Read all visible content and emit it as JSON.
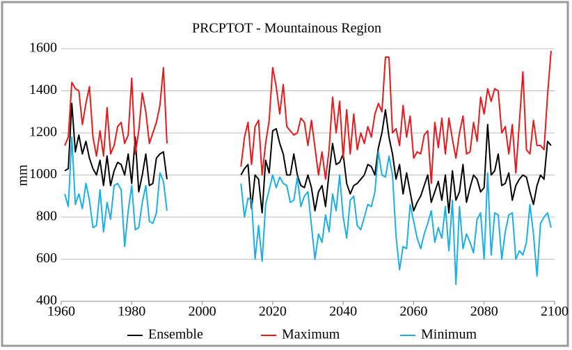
{
  "chart_data": {
    "type": "line",
    "title": "PRCPTOT - Mountainous Region",
    "y_label": "mm",
    "x": [
      1961,
      1962,
      1963,
      1964,
      1965,
      1966,
      1967,
      1968,
      1969,
      1970,
      1971,
      1972,
      1973,
      1974,
      1975,
      1976,
      1977,
      1978,
      1979,
      1980,
      1981,
      1982,
      1983,
      1984,
      1985,
      1986,
      1987,
      1988,
      1989,
      1990,
      2000,
      2011,
      2012,
      2013,
      2014,
      2015,
      2016,
      2017,
      2018,
      2019,
      2020,
      2021,
      2022,
      2023,
      2024,
      2025,
      2026,
      2027,
      2028,
      2029,
      2030,
      2031,
      2032,
      2033,
      2034,
      2035,
      2036,
      2037,
      2038,
      2039,
      2040,
      2041,
      2042,
      2043,
      2044,
      2045,
      2046,
      2047,
      2048,
      2049,
      2050,
      2051,
      2052,
      2053,
      2054,
      2055,
      2056,
      2057,
      2058,
      2059,
      2060,
      2061,
      2062,
      2063,
      2064,
      2065,
      2066,
      2067,
      2068,
      2069,
      2070,
      2071,
      2072,
      2073,
      2074,
      2075,
      2076,
      2077,
      2078,
      2079,
      2080,
      2081,
      2082,
      2083,
      2084,
      2085,
      2086,
      2087,
      2088,
      2089,
      2090,
      2091,
      2092,
      2093,
      2094,
      2095,
      2096,
      2097,
      2098,
      2099
    ],
    "series": [
      {
        "name": "Ensemble",
        "color": "#000000",
        "values": [
          1020,
          1030,
          1340,
          1110,
          1190,
          1100,
          1160,
          1080,
          1030,
          1000,
          1070,
          950,
          1090,
          950,
          1020,
          1060,
          1050,
          1000,
          1100,
          960,
          1180,
          920,
          1000,
          1100,
          950,
          960,
          1080,
          1100,
          1110,
          980,
          null,
          1000,
          1030,
          1050,
          840,
          1000,
          980,
          820,
          1070,
          1010,
          1210,
          1220,
          1150,
          1100,
          1000,
          1000,
          1100,
          1000,
          950,
          940,
          1000,
          940,
          830,
          920,
          950,
          850,
          1010,
          1150,
          1050,
          1060,
          1100,
          960,
          910,
          950,
          960,
          980,
          1000,
          1050,
          1040,
          1000,
          1130,
          1200,
          1310,
          1180,
          1100,
          980,
          1050,
          910,
          1010,
          920,
          830,
          870,
          900,
          950,
          1000,
          870,
          920,
          970,
          880,
          1000,
          820,
          1020,
          880,
          920,
          1050,
          870,
          940,
          1000,
          980,
          920,
          940,
          1240,
          1000,
          1020,
          1100,
          950,
          960,
          1010,
          880,
          950,
          980,
          1000,
          990,
          920,
          860,
          950,
          1000,
          980,
          1160,
          1140
        ]
      },
      {
        "name": "Maximum",
        "color": "#e8191c",
        "values": [
          1140,
          1180,
          1440,
          1410,
          1400,
          1240,
          1340,
          1420,
          1180,
          1090,
          1210,
          1090,
          1320,
          1100,
          1140,
          1230,
          1250,
          1150,
          1190,
          1460,
          1100,
          1210,
          1390,
          1300,
          1150,
          1200,
          1250,
          1330,
          1510,
          1150,
          null,
          1040,
          1180,
          1250,
          1050,
          1230,
          1260,
          1000,
          1150,
          1260,
          1510,
          1420,
          1290,
          1430,
          1230,
          1210,
          1190,
          1200,
          1270,
          1250,
          1140,
          1260,
          1130,
          1000,
          1110,
          980,
          1120,
          1370,
          1200,
          1350,
          1080,
          1310,
          1100,
          1290,
          1120,
          1200,
          1150,
          1230,
          1180,
          1290,
          1340,
          1300,
          1560,
          1560,
          1200,
          1220,
          1140,
          1330,
          1180,
          1280,
          1080,
          1110,
          1100,
          1190,
          1210,
          960,
          1250,
          1130,
          1270,
          1100,
          1270,
          1170,
          1080,
          1200,
          1280,
          1100,
          1110,
          1250,
          1160,
          1370,
          1290,
          1410,
          1350,
          1410,
          1400,
          1200,
          1230,
          1100,
          1240,
          1010,
          1250,
          1490,
          1120,
          1100,
          1260,
          1140,
          1140,
          1120,
          1380,
          1590
        ]
      },
      {
        "name": "Minimum",
        "color": "#1eaee6",
        "values": [
          910,
          850,
          1180,
          860,
          910,
          840,
          960,
          880,
          750,
          760,
          930,
          730,
          870,
          790,
          950,
          960,
          930,
          660,
          830,
          950,
          740,
          750,
          870,
          950,
          780,
          770,
          820,
          1010,
          970,
          830,
          null,
          960,
          800,
          890,
          880,
          600,
          760,
          590,
          860,
          930,
          1000,
          940,
          990,
          960,
          950,
          870,
          880,
          990,
          850,
          900,
          920,
          760,
          600,
          720,
          680,
          810,
          730,
          910,
          830,
          1000,
          800,
          700,
          880,
          900,
          760,
          740,
          800,
          860,
          850,
          920,
          1110,
          1000,
          990,
          1090,
          1000,
          710,
          550,
          660,
          650,
          860,
          780,
          700,
          650,
          720,
          770,
          830,
          680,
          750,
          700,
          850,
          640,
          880,
          480,
          850,
          650,
          720,
          680,
          630,
          790,
          820,
          600,
          1010,
          620,
          820,
          810,
          600,
          730,
          810,
          820,
          600,
          640,
          620,
          680,
          860,
          720,
          520,
          770,
          800,
          820,
          750
        ]
      }
    ],
    "xlim": [
      1960,
      2100
    ],
    "xticks": [
      1960,
      1980,
      2000,
      2020,
      2040,
      2060,
      2080,
      2100
    ],
    "ylim": [
      400,
      1600
    ],
    "yticks": [
      400,
      600,
      800,
      1000,
      1200,
      1400,
      1600
    ],
    "grid": true,
    "legend": "bottom"
  }
}
